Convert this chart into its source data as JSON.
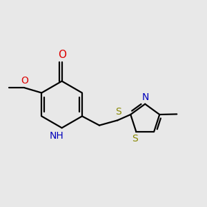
{
  "bg_color": "#e8e8e8",
  "bond_color": "#000000",
  "bond_width": 1.6,
  "font_size": 10,
  "o_color": "#dd0000",
  "n_color": "#0000bb",
  "s_color": "#888800",
  "c_color": "#000000",
  "figsize": [
    3.0,
    3.0
  ],
  "dpi": 100,
  "xlim": [
    0.0,
    1.0
  ],
  "ylim": [
    0.15,
    0.95
  ]
}
